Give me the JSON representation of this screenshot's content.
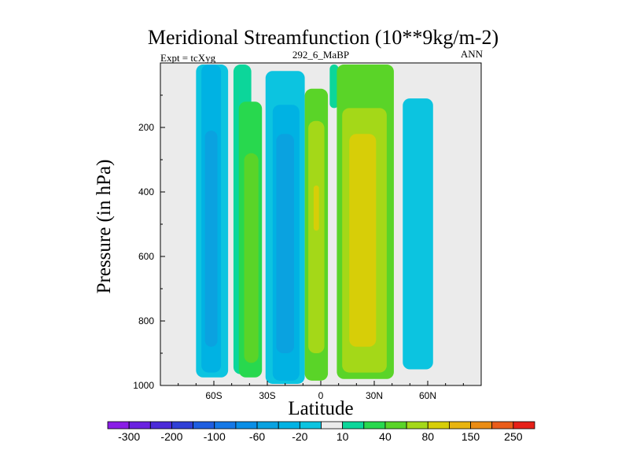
{
  "chart_data": {
    "type": "heatmap",
    "subtype": "filled-contour",
    "title": "Meridional Streamfunction (10**9kg/m-2)",
    "subtitle_left": "Expt = tcXyg",
    "subtitle_center": "292_6_MaBP",
    "subtitle_right": "ANN",
    "xlabel": "Latitude",
    "ylabel": "Pressure (in hPa)",
    "xlim": [
      -90,
      90
    ],
    "ylim": [
      1000,
      0
    ],
    "y_inverted": true,
    "xticks": [
      -60,
      -30,
      0,
      30,
      60
    ],
    "xtick_labels": [
      "60S",
      "30S",
      "0",
      "30N",
      "60N"
    ],
    "yticks": [
      200,
      400,
      600,
      800,
      1000
    ],
    "ytick_labels": [
      "200",
      "400",
      "600",
      "800",
      "1000"
    ],
    "colorbar": {
      "levels": [
        -300,
        -250,
        -200,
        -150,
        -100,
        -80,
        -60,
        -40,
        -20,
        -10,
        10,
        20,
        40,
        60,
        80,
        100,
        150,
        200,
        250
      ],
      "shown_labels": [
        "-300",
        "-200",
        "-100",
        "-60",
        "-20",
        "10",
        "40",
        "80",
        "150",
        "250"
      ],
      "colors": [
        "#8a1ee6",
        "#6a22e0",
        "#4b2ad8",
        "#3040d6",
        "#1f5ee0",
        "#1578e6",
        "#0a8ee6",
        "#0aa2e0",
        "#00b2e3",
        "#0cc4e0",
        "#ebebeb",
        "#0cd69a",
        "#28d84e",
        "#5ad428",
        "#a4d818",
        "#d7ce08",
        "#e8b410",
        "#ea8c14",
        "#ea5c1a",
        "#e62018"
      ]
    },
    "background_color": "#ebebeb",
    "cells": [
      {
        "lat": [
          -86,
          -77
        ],
        "p": [
          5,
          930
        ],
        "value": -10
      },
      {
        "lat": [
          -70,
          -52
        ],
        "p": [
          5,
          975
        ],
        "value": -20
      },
      {
        "lat": [
          -67,
          -56
        ],
        "p": [
          5,
          960
        ],
        "value": -40
      },
      {
        "lat": [
          -65,
          -58
        ],
        "p": [
          210,
          880
        ],
        "value": -60
      },
      {
        "lat": [
          -49,
          -39
        ],
        "p": [
          5,
          965
        ],
        "value": 10
      },
      {
        "lat": [
          -46,
          -33
        ],
        "p": [
          120,
          975
        ],
        "value": 20
      },
      {
        "lat": [
          -43,
          -35
        ],
        "p": [
          280,
          930
        ],
        "value": 40
      },
      {
        "lat": [
          -31,
          -9
        ],
        "p": [
          25,
          995
        ],
        "value": -20
      },
      {
        "lat": [
          -27,
          -12
        ],
        "p": [
          130,
          985
        ],
        "value": -40
      },
      {
        "lat": [
          -25,
          -15
        ],
        "p": [
          220,
          900
        ],
        "value": -60
      },
      {
        "lat": [
          -9,
          4
        ],
        "p": [
          80,
          985
        ],
        "value": 40
      },
      {
        "lat": [
          -7,
          2
        ],
        "p": [
          180,
          900
        ],
        "value": 60
      },
      {
        "lat": [
          -4,
          -1
        ],
        "p": [
          380,
          520
        ],
        "value": 80
      },
      {
        "lat": [
          -5,
          -1
        ],
        "p": [
          700,
          860
        ],
        "value": 60
      },
      {
        "lat": [
          5,
          10
        ],
        "p": [
          5,
          140
        ],
        "value": 10
      },
      {
        "lat": [
          9,
          41
        ],
        "p": [
          5,
          980
        ],
        "value": 40
      },
      {
        "lat": [
          12,
          37
        ],
        "p": [
          140,
          960
        ],
        "value": 60
      },
      {
        "lat": [
          16,
          31
        ],
        "p": [
          220,
          880
        ],
        "value": 80
      },
      {
        "lat": [
          44,
          66
        ],
        "p": [
          5,
          970
        ],
        "value": -10
      },
      {
        "lat": [
          46,
          63
        ],
        "p": [
          110,
          950
        ],
        "value": -20
      }
    ]
  }
}
